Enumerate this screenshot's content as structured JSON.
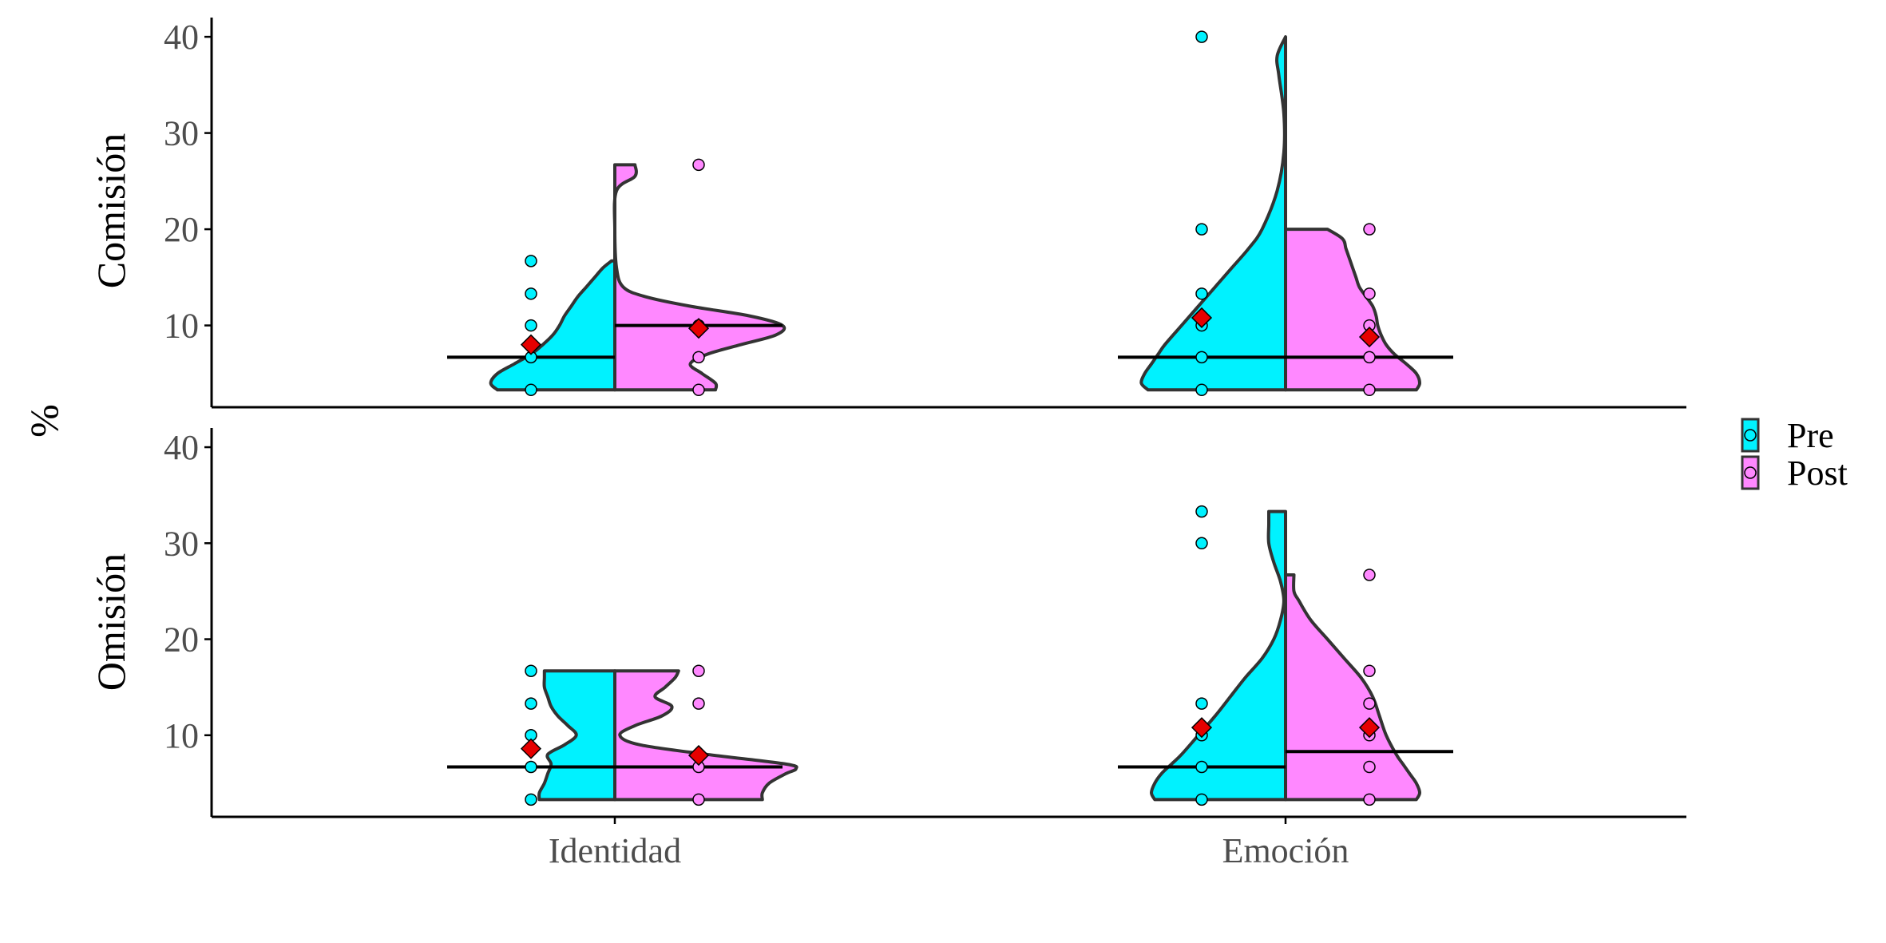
{
  "colors": {
    "pre": "#00F2FF",
    "post": "#FF88FF",
    "mean_marker": "#E60000",
    "outline": "#333333",
    "axis": "#000000"
  },
  "chart_data": {
    "type": "split-violin",
    "ylabel": "%",
    "xlabel": "",
    "categories": [
      "Identidad",
      "Emoción"
    ],
    "panels": [
      "Comisión",
      "Omisión"
    ],
    "yticks": [
      10,
      20,
      30,
      40
    ],
    "ylim": [
      1.5,
      42
    ],
    "legend": {
      "position": "right",
      "entries": [
        "Pre",
        "Post"
      ]
    },
    "groups": [
      {
        "panel": "Comisión",
        "category": "Identidad",
        "pre": {
          "points": [
            3.3,
            6.7,
            10,
            13.3,
            16.7
          ],
          "mean": 8,
          "median": 6.7,
          "violin": [
            [
              3.3,
              0.7
            ],
            [
              4,
              0.74
            ],
            [
              5,
              0.7
            ],
            [
              6,
              0.6
            ],
            [
              7,
              0.5
            ],
            [
              8,
              0.43
            ],
            [
              9,
              0.37
            ],
            [
              10,
              0.33
            ],
            [
              11,
              0.3
            ],
            [
              12,
              0.26
            ],
            [
              13,
              0.22
            ],
            [
              14,
              0.17
            ],
            [
              15,
              0.12
            ],
            [
              16,
              0.07
            ],
            [
              16.7,
              0.02
            ]
          ]
        },
        "post": {
          "points": [
            3.3,
            6.7,
            10,
            26.7
          ],
          "mean": 9.7,
          "median": 10,
          "violin": [
            [
              3.3,
              0.6
            ],
            [
              4,
              0.6
            ],
            [
              5,
              0.52
            ],
            [
              6,
              0.45
            ],
            [
              7,
              0.55
            ],
            [
              8,
              0.75
            ],
            [
              9,
              0.96
            ],
            [
              10,
              1.0
            ],
            [
              11,
              0.8
            ],
            [
              12,
              0.45
            ],
            [
              13,
              0.18
            ],
            [
              14,
              0.05
            ],
            [
              16,
              0.01
            ],
            [
              20,
              0.0
            ],
            [
              24,
              0.01
            ],
            [
              25.5,
              0.12
            ],
            [
              26.7,
              0.12
            ]
          ]
        }
      },
      {
        "panel": "Comisión",
        "category": "Emoción",
        "pre": {
          "points": [
            3.3,
            6.7,
            10,
            13.3,
            20,
            40
          ],
          "mean": 10.8,
          "median": 6.7,
          "violin": [
            [
              3.3,
              0.82
            ],
            [
              4,
              0.86
            ],
            [
              5,
              0.84
            ],
            [
              6,
              0.8
            ],
            [
              7,
              0.76
            ],
            [
              8,
              0.72
            ],
            [
              10,
              0.62
            ],
            [
              12,
              0.52
            ],
            [
              14,
              0.42
            ],
            [
              16,
              0.32
            ],
            [
              18,
              0.22
            ],
            [
              20,
              0.14
            ],
            [
              24,
              0.05
            ],
            [
              28,
              0.01
            ],
            [
              32,
              0.01
            ],
            [
              36,
              0.04
            ],
            [
              38,
              0.05
            ],
            [
              40,
              0.0
            ]
          ]
        },
        "post": {
          "points": [
            3.3,
            6.7,
            10,
            13.3,
            20
          ],
          "mean": 8.8,
          "median": 6.7,
          "violin": [
            [
              3.3,
              0.78
            ],
            [
              4,
              0.8
            ],
            [
              5,
              0.78
            ],
            [
              6,
              0.72
            ],
            [
              7,
              0.65
            ],
            [
              8,
              0.6
            ],
            [
              9,
              0.57
            ],
            [
              10,
              0.55
            ],
            [
              11,
              0.54
            ],
            [
              12,
              0.52
            ],
            [
              13,
              0.48
            ],
            [
              14,
              0.44
            ],
            [
              15,
              0.42
            ],
            [
              16,
              0.4
            ],
            [
              17,
              0.38
            ],
            [
              18,
              0.36
            ],
            [
              19,
              0.34
            ],
            [
              20,
              0.25
            ]
          ]
        }
      },
      {
        "panel": "Omisión",
        "category": "Identidad",
        "pre": {
          "points": [
            3.3,
            6.7,
            10,
            13.3,
            16.7
          ],
          "mean": 8.6,
          "median": 6.7,
          "violin": [
            [
              3.3,
              0.45
            ],
            [
              4,
              0.45
            ],
            [
              5,
              0.42
            ],
            [
              6,
              0.4
            ],
            [
              7,
              0.38
            ],
            [
              8,
              0.4
            ],
            [
              9,
              0.3
            ],
            [
              10,
              0.23
            ],
            [
              11,
              0.28
            ],
            [
              12,
              0.34
            ],
            [
              13,
              0.38
            ],
            [
              14,
              0.4
            ],
            [
              15,
              0.42
            ],
            [
              16,
              0.42
            ],
            [
              16.7,
              0.42
            ]
          ]
        },
        "post": {
          "points": [
            3.3,
            6.7,
            13.3,
            16.7
          ],
          "mean": 7.9,
          "median": 6.7,
          "violin": [
            [
              3.3,
              0.88
            ],
            [
              4,
              0.88
            ],
            [
              5,
              0.92
            ],
            [
              6,
              1.02
            ],
            [
              6.5,
              1.08
            ],
            [
              7,
              1.02
            ],
            [
              8,
              0.55
            ],
            [
              9,
              0.15
            ],
            [
              10,
              0.03
            ],
            [
              11,
              0.12
            ],
            [
              12,
              0.28
            ],
            [
              13,
              0.34
            ],
            [
              14,
              0.24
            ],
            [
              15,
              0.3
            ],
            [
              16,
              0.36
            ],
            [
              16.7,
              0.38
            ]
          ]
        }
      },
      {
        "panel": "Omisión",
        "category": "Emoción",
        "pre": {
          "points": [
            3.3,
            6.7,
            10,
            13.3,
            30,
            33.3
          ],
          "mean": 10.8,
          "median": 6.7,
          "violin": [
            [
              3.3,
              0.78
            ],
            [
              4,
              0.8
            ],
            [
              5,
              0.78
            ],
            [
              6,
              0.74
            ],
            [
              7,
              0.68
            ],
            [
              8,
              0.62
            ],
            [
              10,
              0.52
            ],
            [
              12,
              0.42
            ],
            [
              14,
              0.33
            ],
            [
              16,
              0.24
            ],
            [
              18,
              0.14
            ],
            [
              20,
              0.07
            ],
            [
              22,
              0.03
            ],
            [
              24,
              0.01
            ],
            [
              26,
              0.03
            ],
            [
              28,
              0.07
            ],
            [
              30,
              0.1
            ],
            [
              32,
              0.1
            ],
            [
              33.3,
              0.1
            ]
          ]
        },
        "post": {
          "points": [
            3.3,
            6.7,
            10,
            13.3,
            16.7,
            26.7
          ],
          "mean": 10.8,
          "median": 8.3,
          "violin": [
            [
              3.3,
              0.78
            ],
            [
              4,
              0.8
            ],
            [
              5,
              0.78
            ],
            [
              6,
              0.74
            ],
            [
              7,
              0.7
            ],
            [
              8,
              0.66
            ],
            [
              10,
              0.6
            ],
            [
              12,
              0.56
            ],
            [
              14,
              0.52
            ],
            [
              16,
              0.45
            ],
            [
              18,
              0.35
            ],
            [
              20,
              0.25
            ],
            [
              22,
              0.15
            ],
            [
              24,
              0.08
            ],
            [
              25,
              0.05
            ],
            [
              26.7,
              0.05
            ]
          ]
        }
      }
    ]
  }
}
